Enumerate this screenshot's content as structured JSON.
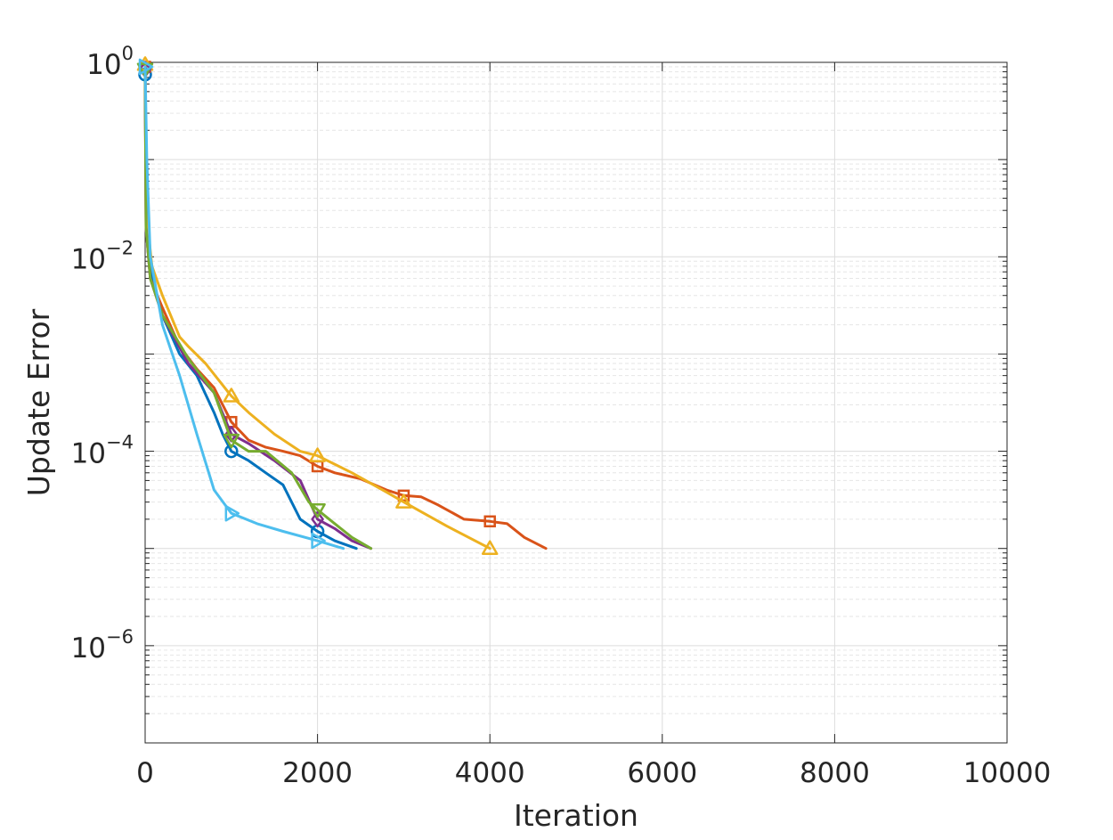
{
  "chart_data": {
    "type": "line",
    "title": "",
    "xlabel": "Iteration",
    "ylabel": "Update Error",
    "xlim": [
      0,
      10000
    ],
    "ylim": [
      1e-07,
      1
    ],
    "yscale": "log",
    "grid": true,
    "minor_grid": true,
    "legend": "none",
    "x_ticks": [
      {
        "value": 0,
        "label": "0"
      },
      {
        "value": 2000,
        "label": "2000"
      },
      {
        "value": 4000,
        "label": "4000"
      },
      {
        "value": 6000,
        "label": "6000"
      },
      {
        "value": 8000,
        "label": "8000"
      },
      {
        "value": 10000,
        "label": "10000"
      }
    ],
    "y_ticks": [
      {
        "value": 1,
        "base": "10",
        "exp": "0"
      },
      {
        "value": 0.01,
        "base": "10",
        "exp": "−2"
      },
      {
        "value": 0.0001,
        "base": "10",
        "exp": "−4"
      },
      {
        "value": 1e-06,
        "base": "10",
        "exp": "−6"
      }
    ],
    "series": [
      {
        "color": "#0072BD",
        "marker": "circle",
        "points": [
          [
            0,
            0.75
          ],
          [
            10,
            0.04
          ],
          [
            50,
            0.008
          ],
          [
            200,
            0.0025
          ],
          [
            400,
            0.001
          ],
          [
            600,
            0.0006
          ],
          [
            800,
            0.00025
          ],
          [
            900,
            0.00015
          ],
          [
            1000,
            0.0001
          ],
          [
            1200,
            8e-05
          ],
          [
            1400,
            6e-05
          ],
          [
            1600,
            4.5e-05
          ],
          [
            1800,
            2e-05
          ],
          [
            2000,
            1.5e-05
          ],
          [
            2200,
            1.2e-05
          ],
          [
            2450,
            1e-05
          ]
        ]
      },
      {
        "color": "#D95319",
        "marker": "square",
        "points": [
          [
            0,
            0.9
          ],
          [
            10,
            0.02
          ],
          [
            60,
            0.006
          ],
          [
            200,
            0.003
          ],
          [
            400,
            0.0012
          ],
          [
            600,
            0.0007
          ],
          [
            800,
            0.00045
          ],
          [
            1000,
            0.0002
          ],
          [
            1200,
            0.00013
          ],
          [
            1400,
            0.00011
          ],
          [
            1600,
            0.0001
          ],
          [
            1800,
            9e-05
          ],
          [
            2000,
            7e-05
          ],
          [
            2200,
            6e-05
          ],
          [
            2500,
            5.2e-05
          ],
          [
            2800,
            4e-05
          ],
          [
            3000,
            3.5e-05
          ],
          [
            3200,
            3.4e-05
          ],
          [
            3400,
            2.8e-05
          ],
          [
            3700,
            2e-05
          ],
          [
            4000,
            1.9e-05
          ],
          [
            4200,
            1.8e-05
          ],
          [
            4400,
            1.3e-05
          ],
          [
            4650,
            1e-05
          ]
        ]
      },
      {
        "color": "#EDB120",
        "marker": "triangle-up",
        "points": [
          [
            0,
            0.95
          ],
          [
            10,
            0.03
          ],
          [
            80,
            0.008
          ],
          [
            200,
            0.004
          ],
          [
            400,
            0.0015
          ],
          [
            500,
            0.0012
          ],
          [
            700,
            0.0008
          ],
          [
            1000,
            0.00037
          ],
          [
            1200,
            0.00025
          ],
          [
            1500,
            0.00015
          ],
          [
            1800,
            0.0001
          ],
          [
            2000,
            9e-05
          ],
          [
            2400,
            6e-05
          ],
          [
            2800,
            3.8e-05
          ],
          [
            3000,
            3e-05
          ],
          [
            3500,
            1.7e-05
          ],
          [
            4000,
            1e-05
          ]
        ]
      },
      {
        "color": "#7E2F8E",
        "marker": "diamond",
        "points": [
          [
            0,
            0.85
          ],
          [
            10,
            0.02
          ],
          [
            60,
            0.006
          ],
          [
            200,
            0.0025
          ],
          [
            500,
            0.0008
          ],
          [
            800,
            0.0004
          ],
          [
            1000,
            0.00015
          ],
          [
            1200,
            0.00012
          ],
          [
            1500,
            8e-05
          ],
          [
            1800,
            5e-05
          ],
          [
            2000,
            2e-05
          ],
          [
            2200,
            1.6e-05
          ],
          [
            2400,
            1.2e-05
          ],
          [
            2620,
            1e-05
          ]
        ]
      },
      {
        "color": "#77AC30",
        "marker": "triangle-down",
        "points": [
          [
            0,
            0.85
          ],
          [
            10,
            0.02
          ],
          [
            60,
            0.006
          ],
          [
            200,
            0.0025
          ],
          [
            500,
            0.0009
          ],
          [
            800,
            0.0004
          ],
          [
            1000,
            0.00013
          ],
          [
            1200,
            0.0001
          ],
          [
            1400,
            0.0001
          ],
          [
            1700,
            6e-05
          ],
          [
            1900,
            3e-05
          ],
          [
            2000,
            2.5e-05
          ],
          [
            2200,
            1.8e-05
          ],
          [
            2400,
            1.3e-05
          ],
          [
            2620,
            1e-05
          ]
        ]
      },
      {
        "color": "#4DBEEE",
        "marker": "triangle-right",
        "points": [
          [
            0,
            0.9
          ],
          [
            20,
            0.1
          ],
          [
            60,
            0.01
          ],
          [
            200,
            0.002
          ],
          [
            400,
            0.0006
          ],
          [
            600,
            0.00015
          ],
          [
            800,
            4e-05
          ],
          [
            1000,
            2.3e-05
          ],
          [
            1300,
            1.8e-05
          ],
          [
            1600,
            1.5e-05
          ],
          [
            2000,
            1.2e-05
          ],
          [
            2300,
            1e-05
          ]
        ]
      }
    ]
  }
}
